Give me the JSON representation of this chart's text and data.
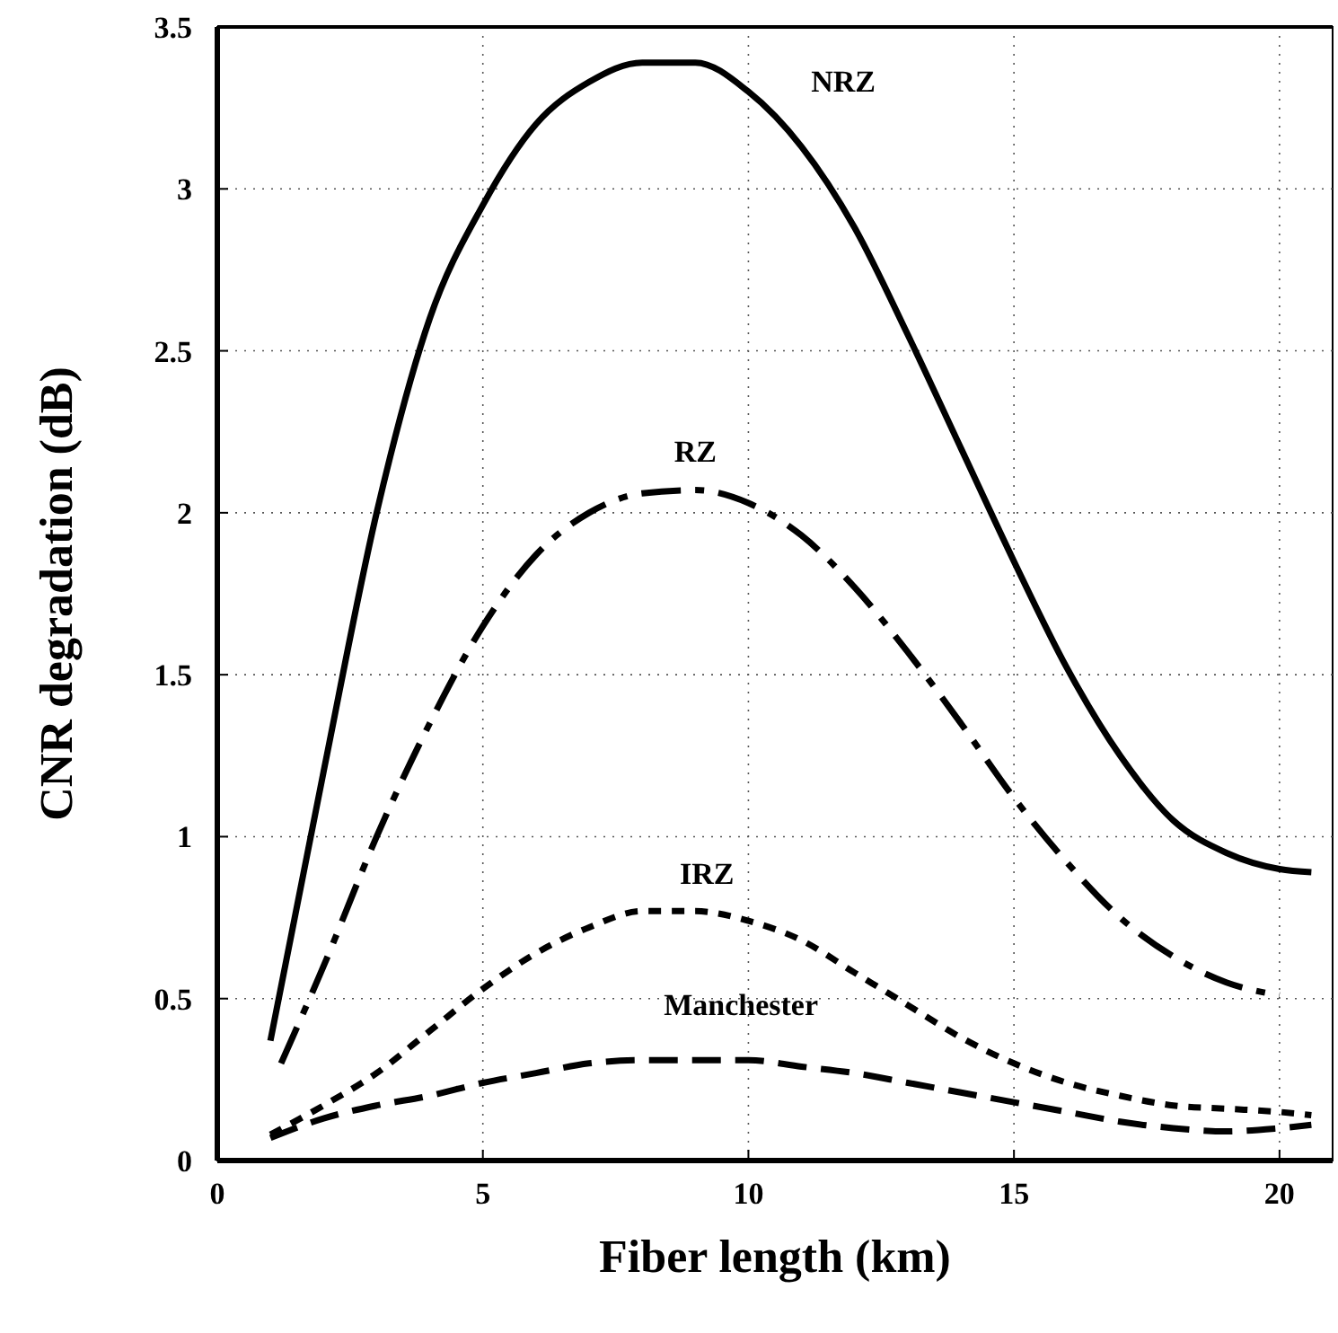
{
  "chart_data": {
    "type": "line",
    "xlabel": "Fiber length (km)",
    "ylabel": "CNR degradation (dB)",
    "xlim": [
      0,
      21
    ],
    "xticks": [
      0,
      5,
      10,
      15,
      20
    ],
    "ylim": [
      0,
      3.5
    ],
    "yticks": [
      0,
      0.5,
      1,
      1.5,
      2,
      2.5,
      3,
      3.5
    ],
    "grid": true,
    "marker": "none",
    "series": [
      {
        "name": "NRZ",
        "color": "#000000",
        "line_style": "solid",
        "x": [
          1,
          2,
          3,
          4,
          5,
          6,
          7,
          8,
          9,
          10,
          11,
          12,
          13,
          14,
          15,
          16,
          17,
          18,
          19,
          20,
          20.6
        ],
        "values": [
          0.37,
          1.2,
          2.0,
          2.6,
          2.95,
          3.2,
          3.33,
          3.39,
          3.39,
          3.3,
          3.13,
          2.88,
          2.55,
          2.2,
          1.85,
          1.52,
          1.25,
          1.05,
          0.95,
          0.9,
          0.89
        ]
      },
      {
        "name": "RZ",
        "color": "#000000",
        "line_style": "dashed",
        "x": [
          1.2,
          2,
          3,
          4,
          5,
          6,
          7,
          8,
          9,
          10,
          11,
          12,
          13,
          14,
          15,
          16,
          17,
          18,
          19,
          20
        ],
        "values": [
          0.3,
          0.6,
          1.0,
          1.35,
          1.65,
          1.87,
          2.0,
          2.06,
          2.07,
          2.03,
          1.93,
          1.77,
          1.57,
          1.35,
          1.12,
          0.92,
          0.75,
          0.63,
          0.55,
          0.51
        ]
      },
      {
        "name": "IRZ",
        "color": "#000000",
        "line_style": "dotted",
        "x": [
          1,
          2,
          3,
          4,
          5,
          6,
          7,
          8,
          9,
          10,
          11,
          12,
          13,
          14,
          15,
          16,
          17,
          18,
          19,
          20,
          20.6
        ],
        "values": [
          0.08,
          0.17,
          0.27,
          0.4,
          0.53,
          0.64,
          0.72,
          0.77,
          0.77,
          0.74,
          0.68,
          0.58,
          0.48,
          0.38,
          0.3,
          0.24,
          0.2,
          0.17,
          0.16,
          0.15,
          0.14
        ]
      },
      {
        "name": "Manchester",
        "color": "#000000",
        "line_style": "dashed",
        "x": [
          1,
          2,
          3,
          4,
          5,
          6,
          7,
          8,
          9,
          10,
          11,
          12,
          13,
          14,
          15,
          16,
          17,
          18,
          19,
          20,
          20.6
        ],
        "values": [
          0.07,
          0.13,
          0.17,
          0.2,
          0.24,
          0.27,
          0.3,
          0.31,
          0.31,
          0.31,
          0.29,
          0.27,
          0.24,
          0.21,
          0.18,
          0.15,
          0.12,
          0.1,
          0.09,
          0.1,
          0.11
        ]
      }
    ]
  }
}
